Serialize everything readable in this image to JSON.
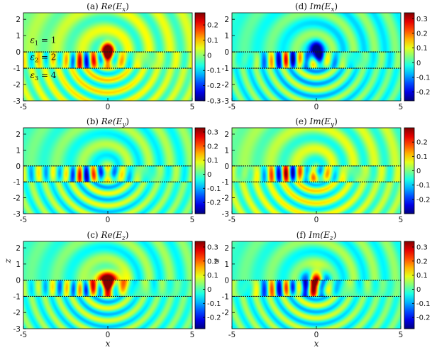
{
  "chart_data": [
    {
      "panel": "a",
      "type": "heatmap",
      "title": "(a) Re(E_x)",
      "title_parts": {
        "prefix": "(a) ",
        "fn": "Re",
        "arg": "(E",
        "sub": "x",
        "close": ")"
      },
      "component": "x",
      "part": "real",
      "xlim": [
        -5,
        5
      ],
      "ylim": [
        -3,
        2.4
      ],
      "xticks": [
        -5,
        0,
        5
      ],
      "yticks": [
        2,
        1,
        0,
        -1,
        -2,
        -3
      ],
      "colorbar": {
        "ticks": [
          0.2,
          0.1,
          0,
          -0.1,
          -0.2,
          -0.3
        ],
        "tick_labels": [
          "0.2",
          "0.1",
          "0",
          "-0.1",
          "-0.2",
          "-0.3"
        ],
        "range": [
          -0.3,
          0.28
        ]
      },
      "interfaces": [
        0,
        -1
      ],
      "annotations": [
        {
          "text": "ε1 = 1",
          "sym": "ε",
          "sub": "1",
          "rest": " = 1",
          "x": -4.6,
          "y": 0.55
        },
        {
          "text": "ε2 = 2",
          "sym": "ε",
          "sub": "2",
          "rest": " = 2",
          "x": -4.6,
          "y": -0.5
        },
        {
          "text": "ε3 = 4",
          "sym": "ε",
          "sub": "3",
          "rest": " = 4",
          "x": -4.6,
          "y": -1.6
        }
      ]
    },
    {
      "panel": "d",
      "type": "heatmap",
      "title": "(d) Im(E_x)",
      "title_parts": {
        "prefix": "(d) ",
        "fn": "Im",
        "arg": "(E",
        "sub": "x",
        "close": ")"
      },
      "component": "x",
      "part": "imag",
      "xlim": [
        -5,
        5
      ],
      "ylim": [
        -3,
        2.4
      ],
      "xticks": [
        -5,
        0,
        5
      ],
      "yticks": [
        2,
        1,
        0,
        -1,
        -2,
        -3
      ],
      "colorbar": {
        "ticks": [
          0.3,
          0.2,
          0.1,
          0,
          -0.1,
          -0.2
        ],
        "tick_labels": [
          "0.3",
          "0.2",
          "0.1",
          "0",
          "-0.1",
          "-0.2"
        ],
        "range": [
          -0.26,
          0.34
        ]
      },
      "interfaces": [
        0,
        -1
      ]
    },
    {
      "panel": "b",
      "type": "heatmap",
      "title": "(b) Re(E_y)",
      "title_parts": {
        "prefix": "(b) ",
        "fn": "Re",
        "arg": "(E",
        "sub": "y",
        "close": ")"
      },
      "component": "y",
      "part": "real",
      "xlim": [
        -5,
        5
      ],
      "ylim": [
        -3,
        2.4
      ],
      "xticks": [
        -5,
        0,
        5
      ],
      "yticks": [
        2,
        1,
        0,
        -1,
        -2,
        -3
      ],
      "colorbar": {
        "ticks": [
          0.3,
          0.2,
          0.1,
          0,
          -0.1,
          -0.2
        ],
        "tick_labels": [
          "0.3",
          "0.2",
          "0.1",
          "0",
          "-0.1",
          "-0.2"
        ],
        "range": [
          -0.28,
          0.33
        ]
      },
      "interfaces": [
        0,
        -1
      ]
    },
    {
      "panel": "e",
      "type": "heatmap",
      "title": "(e) Im(E_y)",
      "title_parts": {
        "prefix": "(e) ",
        "fn": "Im",
        "arg": "(E",
        "sub": "y",
        "close": ")"
      },
      "component": "y",
      "part": "imag",
      "xlim": [
        -5,
        5
      ],
      "ylim": [
        -3,
        2.4
      ],
      "xticks": [
        -5,
        0,
        5
      ],
      "yticks": [
        2,
        1,
        0,
        -1,
        -2,
        -3
      ],
      "colorbar": {
        "ticks": [
          0.2,
          0.1,
          0,
          -0.1,
          -0.2
        ],
        "tick_labels": [
          "0.2",
          "0.1",
          "0",
          "-0.1",
          "-0.2"
        ],
        "range": [
          -0.3,
          0.3
        ]
      },
      "interfaces": [
        0,
        -1
      ]
    },
    {
      "panel": "c",
      "type": "heatmap",
      "title": "(c) Re(E_z)",
      "title_parts": {
        "prefix": "(c) ",
        "fn": "Re",
        "arg": "(E",
        "sub": "z",
        "close": ")"
      },
      "component": "z",
      "part": "real",
      "xlabel": "x",
      "ylabel": "z",
      "xlim": [
        -5,
        5
      ],
      "ylim": [
        -3,
        2.4
      ],
      "xticks": [
        -5,
        0,
        5
      ],
      "yticks": [
        2,
        1,
        0,
        -1,
        -2,
        -3
      ],
      "colorbar": {
        "ticks": [
          0.3,
          0.2,
          0.1,
          0,
          -0.1,
          -0.2
        ],
        "tick_labels": [
          "0.3",
          "0.2",
          "0.1",
          "0",
          "-0.1",
          "-0.2"
        ],
        "range": [
          -0.28,
          0.34
        ]
      },
      "interfaces": [
        0,
        -1
      ]
    },
    {
      "panel": "f",
      "type": "heatmap",
      "title": "(f) Im(E_z)",
      "title_parts": {
        "prefix": "(f) ",
        "fn": "Im",
        "arg": "(E",
        "sub": "z",
        "close": ")"
      },
      "component": "z",
      "part": "imag",
      "xlabel": "x",
      "ylabel": "z",
      "xlim": [
        -5,
        5
      ],
      "ylim": [
        -3,
        2.4
      ],
      "xticks": [
        -5,
        0,
        5
      ],
      "yticks": [
        2,
        1,
        0,
        -1,
        -2
      ],
      "colorbar": {
        "ticks": [
          0.3,
          0.2,
          0.1,
          0,
          -0.1,
          -0.2
        ],
        "tick_labels": [
          "0.3",
          "0.2",
          "0.1",
          "0",
          "-0.1",
          "-0.2"
        ],
        "range": [
          -0.28,
          0.34
        ]
      },
      "interfaces": [
        0,
        -1
      ]
    }
  ],
  "colormap": {
    "name": "jet",
    "low": "#00008f",
    "mid": "#7fff7f",
    "high": "#800000"
  },
  "colors": {
    "interface_line": "#1a1a1a",
    "axes": "#000000"
  }
}
